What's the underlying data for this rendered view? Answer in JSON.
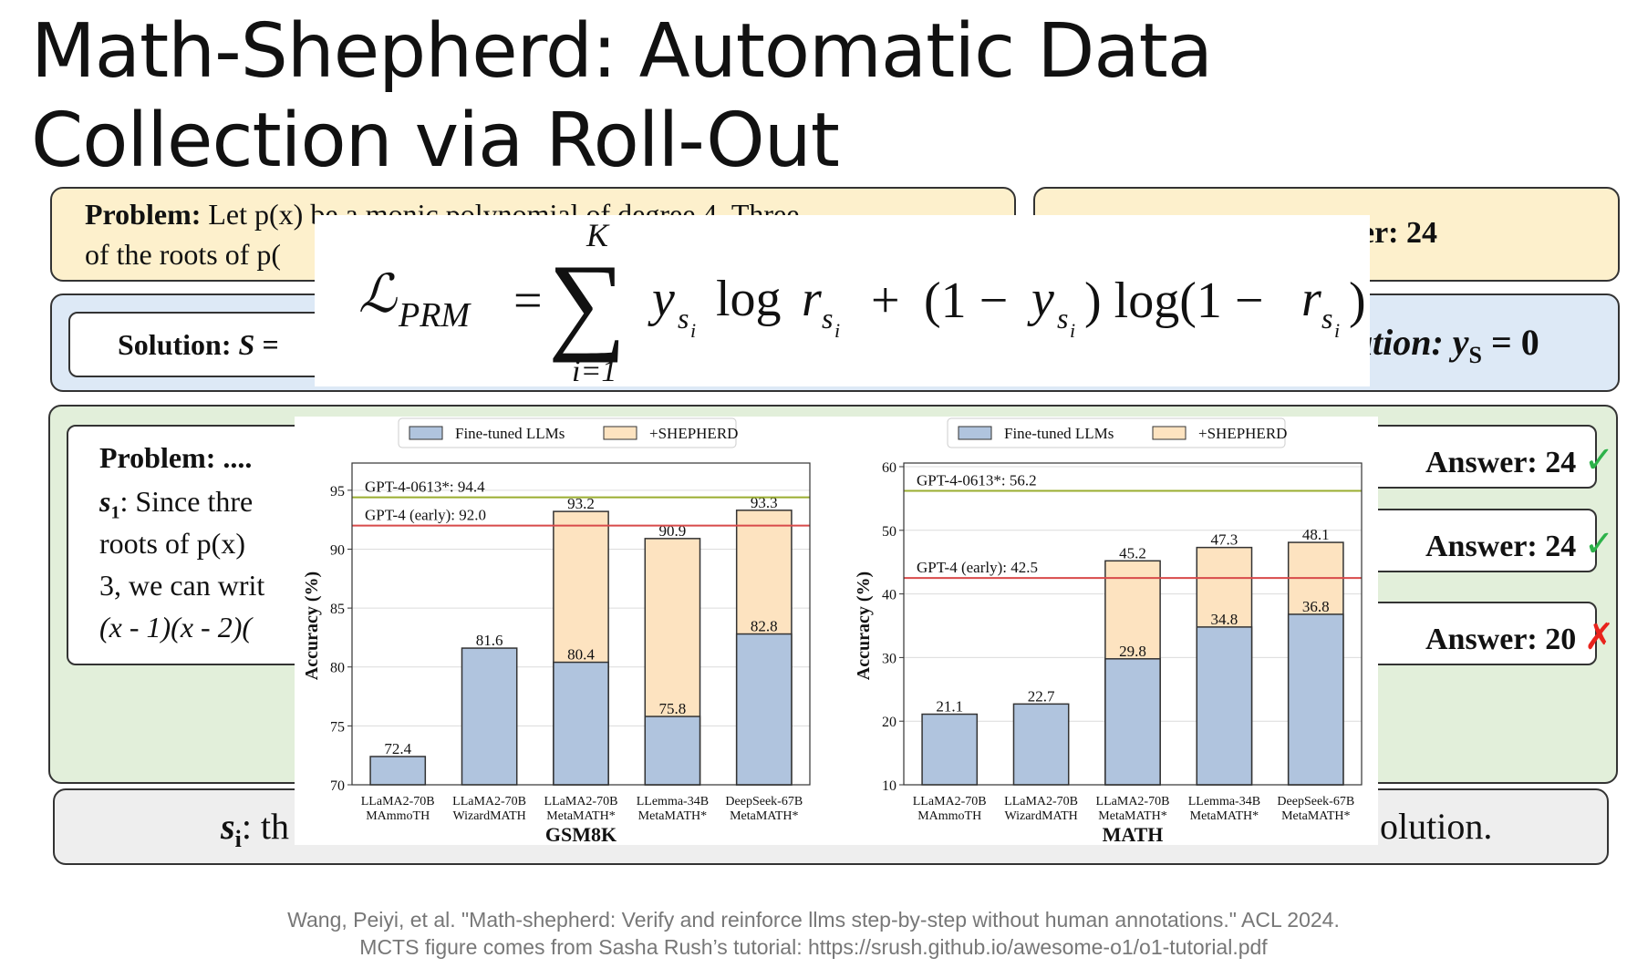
{
  "slide": {
    "title_line1": "Math-Shepherd: Automatic Data",
    "title_line2": "Collection via Roll-Out"
  },
  "background_boxes": {
    "problem_label": "Problem:",
    "problem_text_line1": "Let p(x) be a monic polynomial of degree 4.  Three",
    "problem_text_line2": "of the roots of p(",
    "golden_answer_tail": "ver: 24",
    "solution_label": "Solution:",
    "solution_var": "S =",
    "solution_right": "ation: y",
    "solution_right_sub": "S",
    "solution_right_eq": " = 0",
    "green_problem": "Problem: ....",
    "green_s1_label": "s",
    "green_s1_sub": "1",
    "green_s1_text": ": Since thre",
    "green_line2": "roots of p(x) ",
    "green_line3": "3, we can writ",
    "green_line4": "(x - 1)(x - 2)(",
    "answers": [
      {
        "text": "Answer: 24",
        "mark": "✓",
        "color": "#2db24a"
      },
      {
        "text": "Answer: 24",
        "mark": "✓",
        "color": "#2db24a"
      },
      {
        "text": "Answer: 20",
        "mark": "✗",
        "color": "#e8231c"
      }
    ],
    "si_label": "s",
    "si_sub": "i",
    "si_text": ": th",
    "si_tail": "olution."
  },
  "formula": {
    "lhs": "ℒ",
    "lhs_sub": "PRM",
    "upper": "K",
    "lower": "i=1"
  },
  "chart_data": [
    {
      "type": "bar",
      "title": "",
      "xlabel": "GSM8K",
      "ylabel": "Accuracy (%)",
      "ylim": [
        70,
        97
      ],
      "yticks": [
        70,
        75,
        80,
        85,
        90,
        95
      ],
      "categories": [
        [
          "LLaMA2-70B",
          "MAmmoTH"
        ],
        [
          "LLaMA2-70B",
          "WizardMATH"
        ],
        [
          "LLaMA2-70B",
          "MetaMATH*"
        ],
        [
          "LLemma-34B",
          "MetaMATH*"
        ],
        [
          "DeepSeek-67B",
          "MetaMATH*"
        ]
      ],
      "series": [
        {
          "name": "Fine-tuned LLMs",
          "values": [
            72.4,
            81.6,
            80.4,
            75.8,
            82.8
          ],
          "color": "#b0c4de"
        },
        {
          "name": "+SHEPHERD",
          "values": [
            null,
            null,
            93.2,
            90.9,
            93.3
          ],
          "color": "#fde3c0"
        }
      ],
      "reference_lines": [
        {
          "label": "GPT-4-0613*: 94.4",
          "value": 94.4,
          "color": "#9aad2f"
        },
        {
          "label": "GPT-4 (early): 92.0",
          "value": 92.0,
          "color": "#d84a4a"
        }
      ],
      "legend": "top",
      "grid": true
    },
    {
      "type": "bar",
      "title": "",
      "xlabel": "MATH",
      "ylabel": "Accuracy (%)",
      "ylim": [
        10,
        60
      ],
      "yticks": [
        10,
        20,
        30,
        40,
        50,
        60
      ],
      "categories": [
        [
          "LLaMA2-70B",
          "MAmmoTH"
        ],
        [
          "LLaMA2-70B",
          "WizardMATH"
        ],
        [
          "LLaMA2-70B",
          "MetaMATH*"
        ],
        [
          "LLemma-34B",
          "MetaMATH*"
        ],
        [
          "DeepSeek-67B",
          "MetaMATH*"
        ]
      ],
      "series": [
        {
          "name": "Fine-tuned LLMs",
          "values": [
            21.1,
            22.7,
            29.8,
            34.8,
            36.8
          ],
          "color": "#b0c4de"
        },
        {
          "name": "+SHEPHERD",
          "values": [
            null,
            null,
            45.2,
            47.3,
            48.1
          ],
          "color": "#fde3c0"
        }
      ],
      "reference_lines": [
        {
          "label": "GPT-4-0613*: 56.2",
          "value": 56.2,
          "color": "#9aad2f"
        },
        {
          "label": "GPT-4 (early): 42.5",
          "value": 42.5,
          "color": "#d84a4a"
        }
      ],
      "legend": "top",
      "grid": true
    }
  ],
  "citation": {
    "line1": "Wang, Peiyi, et al. \"Math-shepherd: Verify and reinforce llms step-by-step without human annotations.\" ACL 2024.",
    "line2": "MCTS figure comes from Sasha Rush’s tutorial: https://srush.github.io/awesome-o1/o1-tutorial.pdf"
  }
}
